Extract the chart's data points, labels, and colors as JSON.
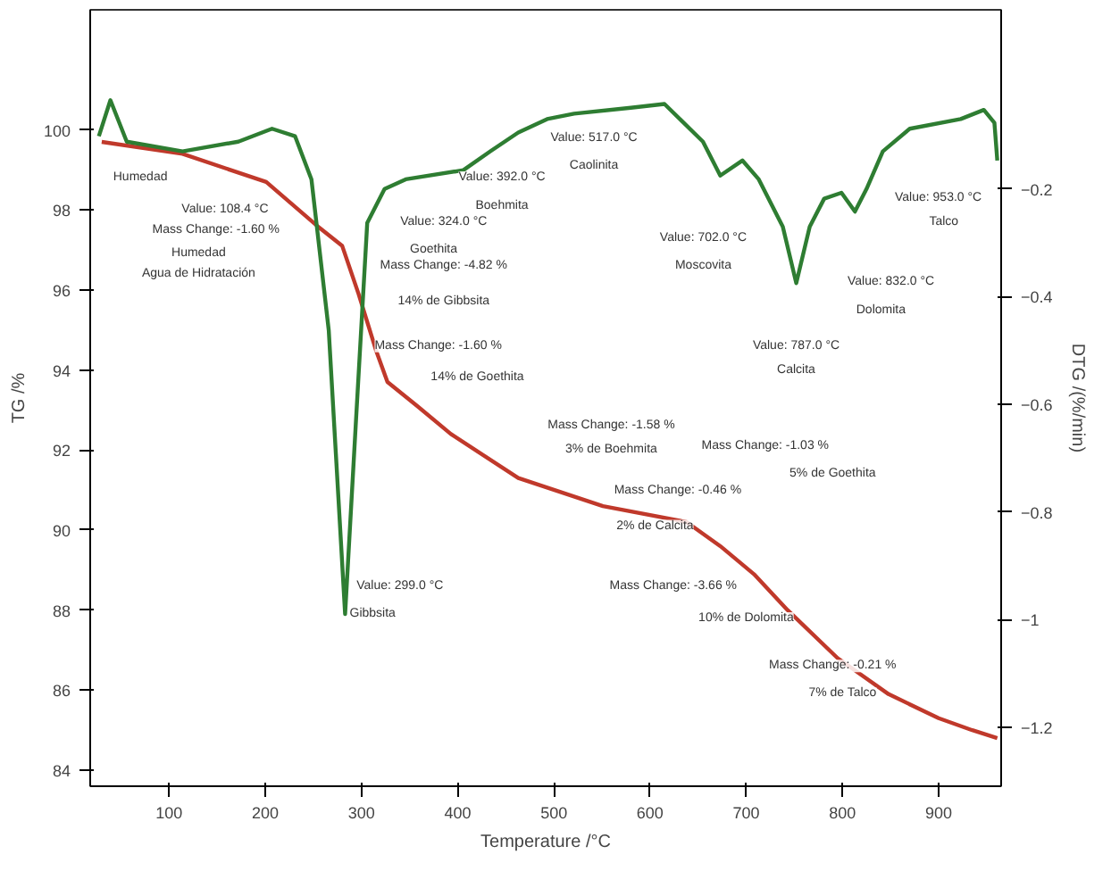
{
  "chart_data": {
    "type": "line",
    "xlabel": "Temperature /°C",
    "ylabel": "TG /%",
    "y2label": "DTG /(%/min)",
    "xlim": [
      18,
      965
    ],
    "xticks": [
      100,
      200,
      300,
      400,
      500,
      600,
      700,
      800,
      900
    ],
    "ylim": [
      83.6,
      103
    ],
    "yticks": [
      84,
      86,
      88,
      90,
      92,
      94,
      96,
      98,
      100
    ],
    "y2lim": [
      -1.31,
      0.133
    ],
    "y2ticks": [
      -0.2,
      -0.4,
      -0.6,
      -0.8,
      -1.0,
      -1.2
    ],
    "grid": false,
    "line_style": "solid",
    "marker": "none",
    "series": [
      {
        "color": "#c0392b",
        "x": [
          30,
          114,
          201,
          254,
          280,
          297,
          315,
          327,
          358,
          393,
          463,
          551,
          638,
          673,
          708,
          743,
          795,
          848,
          900,
          935,
          961
        ],
        "values": [
          99.7,
          99.4,
          98.7,
          97.6,
          97.1,
          95.9,
          94.5,
          93.7,
          93.1,
          92.4,
          91.3,
          90.6,
          90.2,
          89.6,
          88.9,
          88.0,
          86.8,
          85.9,
          85.3,
          85.0,
          84.8
        ]
      },
      {
        "color": "#2e7d32",
        "axis": "y2",
        "x": [
          27,
          39,
          56,
          114,
          172,
          207,
          231,
          248,
          266,
          283,
          294,
          306,
          324,
          346,
          406,
          434,
          463,
          493,
          521,
          580,
          615,
          655,
          673,
          696,
          713,
          738,
          752,
          766,
          781,
          799,
          813,
          825,
          842,
          870,
          923,
          947,
          958,
          961
        ],
        "values": [
          -0.102,
          -0.035,
          -0.112,
          -0.13,
          -0.112,
          -0.088,
          -0.102,
          -0.182,
          -0.463,
          -0.99,
          -0.64,
          -0.263,
          -0.2,
          -0.182,
          -0.165,
          -0.13,
          -0.095,
          -0.07,
          -0.06,
          -0.049,
          -0.042,
          -0.112,
          -0.175,
          -0.147,
          -0.182,
          -0.27,
          -0.375,
          -0.27,
          -0.218,
          -0.207,
          -0.242,
          -0.2,
          -0.13,
          -0.088,
          -0.07,
          -0.053,
          -0.077,
          -0.147
        ]
      }
    ],
    "annotations": [
      "Humedad",
      "Value: 108.4 °C",
      "Mass Change: -1.60 %",
      "Humedad",
      "Agua de Hidratación",
      "Value: 299.0 °C",
      "Gibbsita",
      "Value: 324.0 °C",
      "Goethita",
      "Value: 392.0 °C",
      "Boehmita",
      "Mass Change: -4.82 %",
      "14% de Gibbsita",
      "Mass Change: -1.60 %",
      "14% de Goethita",
      "Value: 517.0 °C",
      "Caolinita",
      "Mass Change: -1.58 %",
      "3% de Boehmita",
      "Value: 702.0 °C",
      "Moscovita",
      "Value: 787.0 °C",
      "Calcita",
      "Value: 832.0 °C",
      "Dolomita",
      "Value: 953.0 °C",
      "Talco",
      "Mass Change: -1.03 %",
      "5% de Goethita",
      "Mass Change: -0.46 %",
      "2% de Calcita",
      "Mass Change: -3.66 %",
      "10% de Dolomita",
      "Mass Change: -0.21 %",
      "7% de Talco"
    ]
  }
}
